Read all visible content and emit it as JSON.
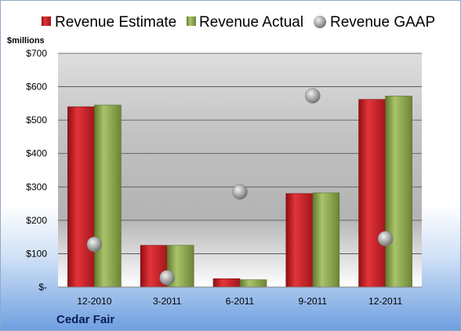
{
  "chart_data": {
    "type": "bar",
    "company": "Cedar Fair",
    "ylabel": "$millions",
    "ylim": [
      0,
      700
    ],
    "yticks": [
      0,
      100,
      200,
      300,
      400,
      500,
      600,
      700
    ],
    "ytick_labels": [
      "$-",
      "$100",
      "$200",
      "$300",
      "$400",
      "$500",
      "$600",
      "$700"
    ],
    "categories": [
      "12-2010",
      "3-2011",
      "6-2011",
      "9-2011",
      "12-2011"
    ],
    "legend_position": "top",
    "grid": true,
    "series": [
      {
        "name": "Revenue Estimate",
        "mark": "bar",
        "color": "#c41e24",
        "values": [
          540,
          125,
          25,
          280,
          562
        ]
      },
      {
        "name": "Revenue Actual",
        "mark": "bar",
        "color": "#8aa64a",
        "values": [
          545,
          125,
          22,
          282,
          572
        ]
      },
      {
        "name": "Revenue GAAP",
        "mark": "marker",
        "color": "#9a9a9a",
        "values": [
          128,
          28,
          285,
          573,
          145
        ]
      }
    ]
  }
}
